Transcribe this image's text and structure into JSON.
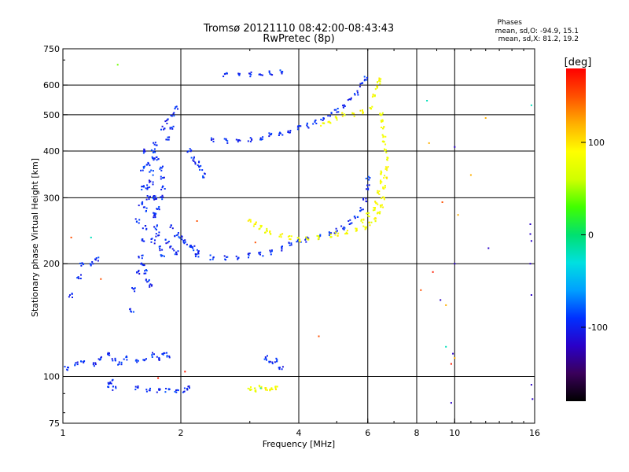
{
  "header": {
    "title_line1": "Tromsø 20121110 08:42:00-08:43:43",
    "title_line2": "RwPretec (8p)",
    "phases_title": "Phases",
    "phases_o": "mean, sd,O: -94.9, 15.1",
    "phases_x": "mean, sd,X:  81.2, 19.2"
  },
  "colorbar": {
    "unit": "[deg]",
    "ticks": [
      {
        "value": 100,
        "label": "100"
      },
      {
        "value": 0,
        "label": "0"
      },
      {
        "value": -100,
        "label": "-100"
      }
    ],
    "range": [
      -180,
      180
    ],
    "colors": [
      "#000000",
      "#3a005a",
      "#2a00c8",
      "#0030ff",
      "#00a0ff",
      "#00e0e0",
      "#00e070",
      "#40ff00",
      "#d0ff00",
      "#ffff00",
      "#ffb000",
      "#ff5000",
      "#ff0000"
    ]
  },
  "chart_data": {
    "type": "scatter",
    "xlabel": "Frequency [MHz]",
    "ylabel": "Stationary phase Virtual Height [km]",
    "xscale": "log",
    "yscale": "log",
    "xlim": [
      1,
      16
    ],
    "ylim": [
      75,
      750
    ],
    "xticks": [
      {
        "value": 1,
        "label": "1"
      },
      {
        "value": 2,
        "label": "2"
      },
      {
        "value": 4,
        "label": "4"
      },
      {
        "value": 6,
        "label": "6"
      },
      {
        "value": 8,
        "label": "8"
      },
      {
        "value": 10,
        "label": "10"
      },
      {
        "value": 16,
        "label": "16"
      }
    ],
    "yticks": [
      {
        "value": 75,
        "label": "75"
      },
      {
        "value": 100,
        "label": "100"
      },
      {
        "value": 200,
        "label": "200"
      },
      {
        "value": 300,
        "label": "300"
      },
      {
        "value": 400,
        "label": "400"
      },
      {
        "value": 500,
        "label": "500"
      },
      {
        "value": 600,
        "label": "600"
      },
      {
        "value": 750,
        "label": "750"
      }
    ],
    "grid": true,
    "gridlines_x": [
      2,
      4,
      6,
      8,
      10
    ],
    "gridlines_y": [
      100,
      200,
      300,
      400,
      500,
      600
    ],
    "series": [
      {
        "phase": -95,
        "spread": 0.025,
        "points": [
          [
            1.02,
            105
          ],
          [
            1.08,
            108
          ],
          [
            1.12,
            110
          ],
          [
            1.2,
            108
          ],
          [
            1.25,
            112
          ],
          [
            1.3,
            115
          ],
          [
            1.35,
            110
          ],
          [
            1.4,
            108
          ],
          [
            1.45,
            112
          ],
          [
            1.55,
            110
          ],
          [
            1.62,
            112
          ],
          [
            1.7,
            114
          ],
          [
            1.75,
            112
          ],
          [
            1.8,
            115
          ],
          [
            1.85,
            114
          ],
          [
            1.3,
            95
          ],
          [
            1.35,
            93
          ],
          [
            1.33,
            97
          ],
          [
            1.55,
            93
          ],
          [
            1.65,
            92
          ],
          [
            1.75,
            92
          ],
          [
            1.85,
            92
          ],
          [
            1.95,
            92
          ],
          [
            2.05,
            92
          ],
          [
            2.1,
            93
          ],
          [
            1.05,
            165
          ],
          [
            1.1,
            185
          ],
          [
            1.12,
            200
          ],
          [
            1.18,
            200
          ],
          [
            1.22,
            205
          ],
          [
            1.5,
            150
          ],
          [
            1.52,
            170
          ],
          [
            1.55,
            190
          ],
          [
            1.58,
            210
          ],
          [
            1.6,
            230
          ],
          [
            1.62,
            250
          ],
          [
            1.62,
            280
          ],
          [
            1.65,
            300
          ],
          [
            1.65,
            320
          ],
          [
            1.68,
            350
          ],
          [
            1.7,
            380
          ],
          [
            1.7,
            400
          ],
          [
            1.72,
            420
          ],
          [
            1.55,
            260
          ],
          [
            1.58,
            290
          ],
          [
            1.6,
            320
          ],
          [
            1.6,
            360
          ],
          [
            1.62,
            400
          ],
          [
            1.65,
            370
          ],
          [
            1.68,
            330
          ],
          [
            1.7,
            300
          ],
          [
            1.72,
            270
          ],
          [
            1.75,
            240
          ],
          [
            1.78,
            220
          ],
          [
            1.8,
            210
          ],
          [
            1.6,
            200
          ],
          [
            1.62,
            190
          ],
          [
            1.65,
            180
          ],
          [
            1.68,
            175
          ],
          [
            1.7,
            230
          ],
          [
            1.72,
            250
          ],
          [
            1.75,
            280
          ],
          [
            1.78,
            300
          ],
          [
            1.8,
            320
          ],
          [
            1.8,
            340
          ],
          [
            1.78,
            360
          ],
          [
            1.75,
            380
          ],
          [
            1.72,
            300
          ],
          [
            1.7,
            270
          ],
          [
            1.8,
            460
          ],
          [
            1.85,
            480
          ],
          [
            1.9,
            500
          ],
          [
            1.95,
            520
          ],
          [
            1.9,
            460
          ],
          [
            1.85,
            430
          ],
          [
            1.9,
            250
          ],
          [
            1.95,
            240
          ],
          [
            2.0,
            235
          ],
          [
            2.05,
            230
          ],
          [
            2.1,
            225
          ],
          [
            2.15,
            220
          ],
          [
            2.2,
            215
          ],
          [
            1.85,
            230
          ],
          [
            1.9,
            220
          ],
          [
            1.95,
            215
          ],
          [
            2.2,
            210
          ],
          [
            2.4,
            208
          ],
          [
            2.6,
            207
          ],
          [
            2.8,
            208
          ],
          [
            3.0,
            210
          ],
          [
            3.2,
            212
          ],
          [
            3.4,
            215
          ],
          [
            3.6,
            220
          ],
          [
            3.8,
            225
          ],
          [
            4.0,
            228
          ],
          [
            4.2,
            232
          ],
          [
            4.5,
            236
          ],
          [
            4.8,
            240
          ],
          [
            5.0,
            245
          ],
          [
            5.2,
            250
          ],
          [
            5.4,
            258
          ],
          [
            5.6,
            268
          ],
          [
            5.8,
            280
          ],
          [
            5.9,
            295
          ],
          [
            6.0,
            320
          ],
          [
            6.0,
            340
          ],
          [
            2.1,
            400
          ],
          [
            2.15,
            380
          ],
          [
            2.2,
            370
          ],
          [
            2.25,
            360
          ],
          [
            2.3,
            345
          ],
          [
            2.4,
            430
          ],
          [
            2.6,
            425
          ],
          [
            2.8,
            425
          ],
          [
            3.0,
            430
          ],
          [
            3.2,
            435
          ],
          [
            3.4,
            440
          ],
          [
            3.6,
            445
          ],
          [
            3.8,
            452
          ],
          [
            4.0,
            460
          ],
          [
            4.2,
            468
          ],
          [
            4.4,
            478
          ],
          [
            4.6,
            488
          ],
          [
            4.8,
            500
          ],
          [
            5.0,
            515
          ],
          [
            5.2,
            530
          ],
          [
            5.4,
            550
          ],
          [
            5.6,
            570
          ],
          [
            5.8,
            600
          ],
          [
            5.95,
            625
          ],
          [
            2.6,
            640
          ],
          [
            2.8,
            640
          ],
          [
            3.0,
            642
          ],
          [
            3.2,
            645
          ],
          [
            3.4,
            648
          ],
          [
            3.6,
            652
          ],
          [
            3.4,
            108
          ],
          [
            3.5,
            110
          ],
          [
            3.6,
            106
          ],
          [
            3.3,
            112
          ]
        ]
      },
      {
        "phase": 85,
        "spread": 0.02,
        "points": [
          [
            3.0,
            260
          ],
          [
            3.1,
            255
          ],
          [
            3.2,
            250
          ],
          [
            3.3,
            245
          ],
          [
            3.4,
            242
          ],
          [
            3.6,
            238
          ],
          [
            3.8,
            235
          ],
          [
            4.0,
            232
          ],
          [
            4.2,
            233
          ],
          [
            4.5,
            235
          ],
          [
            4.8,
            238
          ],
          [
            5.0,
            240
          ],
          [
            5.3,
            243
          ],
          [
            5.6,
            246
          ],
          [
            5.9,
            250
          ],
          [
            6.1,
            255
          ],
          [
            6.3,
            262
          ],
          [
            6.4,
            272
          ],
          [
            6.5,
            285
          ],
          [
            6.55,
            300
          ],
          [
            6.6,
            320
          ],
          [
            6.65,
            340
          ],
          [
            6.7,
            360
          ],
          [
            6.7,
            380
          ],
          [
            6.65,
            400
          ],
          [
            6.6,
            420
          ],
          [
            6.6,
            440
          ],
          [
            6.55,
            460
          ],
          [
            6.5,
            480
          ],
          [
            6.5,
            500
          ],
          [
            6.2,
            560
          ],
          [
            6.3,
            590
          ],
          [
            6.4,
            610
          ],
          [
            6.45,
            620
          ],
          [
            6.1,
            520
          ],
          [
            5.8,
            510
          ],
          [
            5.5,
            500
          ],
          [
            4.8,
            480
          ],
          [
            5.0,
            490
          ],
          [
            5.2,
            500
          ],
          [
            4.6,
            470
          ],
          [
            5.8,
            260
          ],
          [
            6.0,
            270
          ],
          [
            6.2,
            280
          ],
          [
            6.3,
            290
          ],
          [
            6.4,
            310
          ],
          [
            6.45,
            330
          ],
          [
            6.5,
            350
          ],
          [
            3.0,
            93
          ],
          [
            3.1,
            92
          ],
          [
            3.2,
            94
          ],
          [
            3.3,
            93
          ],
          [
            3.4,
            92
          ],
          [
            3.5,
            93
          ]
        ]
      },
      {
        "phase": 40,
        "spread": 0.0,
        "points": [
          [
            1.38,
            680
          ]
        ]
      },
      {
        "phase": -20,
        "spread": 0.0,
        "points": [
          [
            3.2,
            93
          ],
          [
            1.18,
            235
          ],
          [
            8.5,
            545
          ],
          [
            15.7,
            530
          ],
          [
            9.5,
            120
          ]
        ]
      },
      {
        "phase": 150,
        "spread": 0.0,
        "points": [
          [
            1.05,
            235
          ],
          [
            1.25,
            182
          ],
          [
            2.2,
            260
          ],
          [
            3.1,
            228
          ],
          [
            9.3,
            292
          ],
          [
            4.5,
            128
          ],
          [
            8.2,
            170
          ]
        ]
      },
      {
        "phase": -120,
        "spread": 0.0,
        "points": [
          [
            9.2,
            160
          ],
          [
            9.9,
            115
          ],
          [
            10.0,
            200
          ],
          [
            10.0,
            410
          ],
          [
            12.2,
            220
          ],
          [
            15.6,
            255
          ],
          [
            15.6,
            240
          ],
          [
            15.7,
            230
          ],
          [
            15.6,
            200
          ],
          [
            15.7,
            165
          ],
          [
            15.7,
            95
          ],
          [
            15.8,
            87
          ],
          [
            9.8,
            85
          ]
        ]
      },
      {
        "phase": 120,
        "spread": 0.0,
        "points": [
          [
            9.5,
            155
          ],
          [
            10.2,
            270
          ],
          [
            12.0,
            490
          ],
          [
            11.0,
            345
          ],
          [
            8.6,
            420
          ],
          [
            10.0,
            112
          ]
        ]
      },
      {
        "phase": 170,
        "spread": 0.0,
        "points": [
          [
            2.05,
            103
          ],
          [
            1.75,
            99
          ],
          [
            8.8,
            190
          ],
          [
            9.8,
            108
          ]
        ]
      }
    ]
  }
}
